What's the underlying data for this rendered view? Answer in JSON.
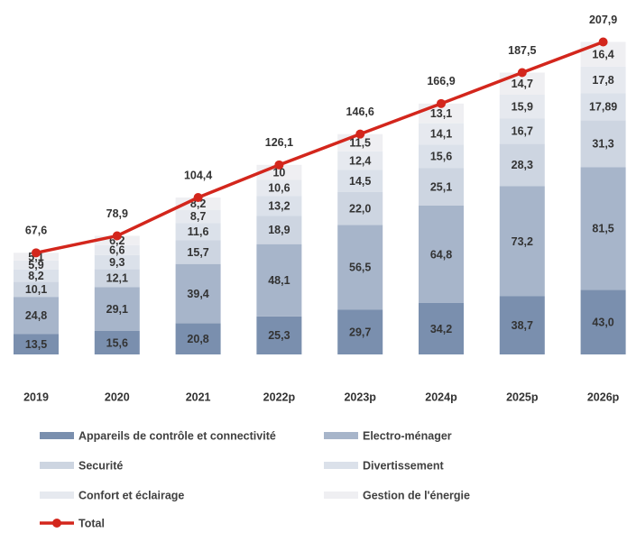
{
  "chart_data": {
    "type": "bar",
    "stacked": true,
    "categories": [
      "2019",
      "2020",
      "2021",
      "2022p",
      "2023p",
      "2024p",
      "2025p",
      "2026p"
    ],
    "ylim": [
      0,
      210
    ],
    "series": [
      {
        "name": "Appareils de contrôle et connectivité",
        "color": "#7a8fae",
        "values": [
          13.5,
          15.6,
          20.8,
          25.3,
          29.7,
          34.2,
          38.7,
          43.0
        ],
        "value_labels": [
          "13,5",
          "15,6",
          "20,8",
          "25,3",
          "29,7",
          "34,2",
          "38,7",
          "43,0"
        ]
      },
      {
        "name": "Electro-ménager",
        "color": "#a7b5ca",
        "values": [
          24.8,
          29.1,
          39.4,
          48.1,
          56.5,
          64.8,
          73.2,
          81.5
        ],
        "value_labels": [
          "24,8",
          "29,1",
          "39,4",
          "48,1",
          "56,5",
          "64,8",
          "73,2",
          "81,5"
        ]
      },
      {
        "name": "Securité",
        "color": "#cdd5e1",
        "values": [
          10.1,
          12.1,
          15.7,
          18.9,
          22.0,
          25.1,
          28.3,
          31.3
        ],
        "value_labels": [
          "10,1",
          "12,1",
          "15,7",
          "18,9",
          "22,0",
          "25,1",
          "28,3",
          "31,3"
        ]
      },
      {
        "name": "Divertissement",
        "color": "#dbe1ea",
        "values": [
          8.2,
          9.3,
          11.6,
          13.2,
          14.5,
          15.6,
          16.7,
          17.89
        ],
        "value_labels": [
          "8,2",
          "9,3",
          "11,6",
          "13,2",
          "14,5",
          "15,6",
          "16,7",
          "17,89"
        ]
      },
      {
        "name": "Confort et éclairage",
        "color": "#e6e9ef",
        "values": [
          5.9,
          6.6,
          8.7,
          10.6,
          12.4,
          14.1,
          15.9,
          17.8
        ],
        "value_labels": [
          "5,9",
          "6,6",
          "8,7",
          "10,6",
          "12,4",
          "14,1",
          "15,9",
          "17,8"
        ]
      },
      {
        "name": "Gestion de l'énergie",
        "color": "#efeff2",
        "values": [
          5.1,
          6.2,
          8.2,
          10,
          11.5,
          13.1,
          14.7,
          16.4
        ],
        "value_labels": [
          "5,1",
          "6,2",
          "8,2",
          "10",
          "11,5",
          "13,1",
          "14,7",
          "16,4"
        ]
      },
      {
        "name": "Total",
        "type": "line",
        "color": "#d3261c",
        "values": [
          67.6,
          78.9,
          104.4,
          126.1,
          146.6,
          166.9,
          187.5,
          207.9
        ],
        "value_labels": [
          "67,6",
          "78,9",
          "104,4",
          "126,1",
          "146,6",
          "166,9",
          "187,5",
          "207,9"
        ]
      }
    ]
  }
}
